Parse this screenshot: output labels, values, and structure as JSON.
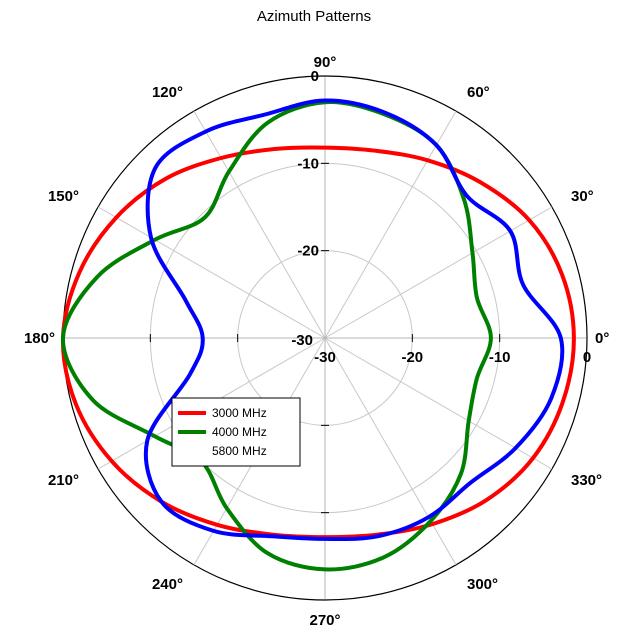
{
  "chart_data": {
    "type": "polar-line",
    "title": "Azimuth Patterns",
    "angle_unit": "deg",
    "angle_ticks": [
      0,
      30,
      60,
      90,
      120,
      150,
      180,
      210,
      240,
      270,
      300,
      330
    ],
    "angle_tick_labels": [
      "0°",
      "30°",
      "60°",
      "90°",
      "120°",
      "150°",
      "180°",
      "210°",
      "240°",
      "270°",
      "300°",
      "330°"
    ],
    "r_range": [
      -30,
      0
    ],
    "r_ticks": [
      -30,
      -20,
      -10,
      0
    ],
    "r_tick_labels": [
      "-30",
      "-20",
      "-10",
      "0"
    ],
    "grid": true,
    "legend_position": "center-left",
    "series": [
      {
        "name": "3000 MHz",
        "color": "#ff0000",
        "theta": [
          0,
          15,
          30,
          45,
          60,
          75,
          90,
          105,
          120,
          135,
          150,
          165,
          180,
          195,
          210,
          225,
          240,
          255,
          270,
          285,
          300,
          315,
          330,
          345
        ],
        "r": [
          -1.5,
          -1.9,
          -3,
          -4.8,
          -6.5,
          -7.8,
          -8.2,
          -7.6,
          -6.2,
          -4.2,
          -2.4,
          -0.9,
          0,
          -0.5,
          -1.8,
          -3.5,
          -5.3,
          -6.7,
          -7.2,
          -6.7,
          -5.4,
          -3.8,
          -2.5,
          -1.8
        ]
      },
      {
        "name": "4000 MHz",
        "color": "#008000",
        "theta": [
          0,
          15,
          30,
          45,
          60,
          75,
          90,
          105,
          120,
          135,
          150,
          165,
          180,
          195,
          210,
          225,
          240,
          255,
          270,
          285,
          300,
          315,
          330,
          345
        ],
        "r": [
          -11,
          -12,
          -10.5,
          -7.5,
          -4.5,
          -3.5,
          -3,
          -4.5,
          -8,
          -10.5,
          -7.5,
          -3,
          0,
          -2.5,
          -7.5,
          -10,
          -7.5,
          -4.5,
          -3.5,
          -4,
          -5.8,
          -8,
          -11,
          -12
        ]
      },
      {
        "name": "5800 MHz",
        "color": "#0000ff",
        "theta": [
          0,
          15,
          30,
          45,
          60,
          75,
          90,
          105,
          120,
          135,
          150,
          165,
          180,
          195,
          210,
          225,
          240,
          255,
          270,
          285,
          300,
          315,
          330,
          345
        ],
        "r": [
          -3,
          -6.5,
          -5.5,
          -7,
          -4.5,
          -3.3,
          -2.8,
          -3.5,
          -2.7,
          -2.5,
          -7,
          -13.5,
          -16,
          -14,
          -6.5,
          -3.5,
          -4.5,
          -6.5,
          -7,
          -6.5,
          -6.3,
          -6.5,
          -4.8,
          -3.2
        ]
      }
    ]
  }
}
